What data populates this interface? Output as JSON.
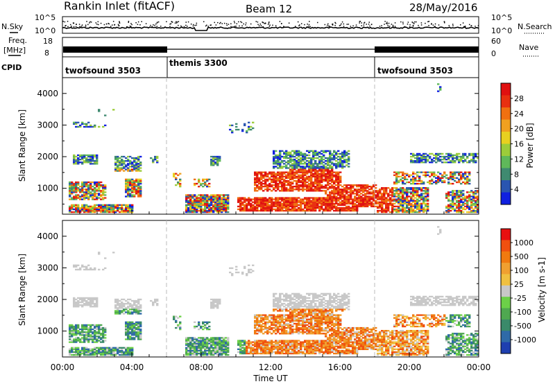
{
  "header": {
    "title": "Rankin Inlet (fitACF)",
    "beam": "Beam 12",
    "date": "28/May/2016"
  },
  "nsky_panel": {
    "left_label": "N.Sky",
    "right_label": "N.Search",
    "left_ticks": [
      "10^5",
      "10^0"
    ],
    "right_ticks": [
      "10^5",
      "10^0"
    ]
  },
  "freq_panel": {
    "left_label_1": "Freq.",
    "left_label_2": "[MHz]",
    "right_label": "Nave",
    "left_ticks": [
      "18",
      "8"
    ],
    "right_ticks": [
      "60",
      "0"
    ]
  },
  "cpid_panel": {
    "label": "CPID",
    "segments": [
      {
        "name": "twofsound 3503",
        "start_hour": 0,
        "end_hour": 6
      },
      {
        "name": "themis 3300",
        "start_hour": 6,
        "end_hour": 18
      },
      {
        "name": "twofsound 3503",
        "start_hour": 18,
        "end_hour": 24
      }
    ]
  },
  "x_axis": {
    "label": "Time UT",
    "ticks": [
      "00:00",
      "04:00",
      "08:00",
      "12:00",
      "16:00",
      "20:00",
      "00:00"
    ],
    "range_hours": [
      0,
      24
    ]
  },
  "chart_data": [
    {
      "type": "heatmap",
      "name": "power",
      "ylabel": "Slant Range [km]",
      "ylim": [
        180,
        4500
      ],
      "yticks": [
        1000,
        2000,
        3000,
        4000
      ],
      "colorbar": {
        "label": "Power [dB]",
        "range": [
          0,
          32
        ],
        "ticks": [
          4,
          8,
          12,
          16,
          20,
          24,
          28
        ],
        "colors": [
          "#1020e0",
          "#2a55b0",
          "#3f8a70",
          "#5fb85a",
          "#9ccc3a",
          "#e8d020",
          "#f0a020",
          "#f07010",
          "#e83010",
          "#e01010"
        ]
      }
    },
    {
      "type": "heatmap",
      "name": "velocity",
      "ylabel": "Slant Range [km]",
      "ylim": [
        180,
        4500
      ],
      "yticks": [
        1000,
        2000,
        3000,
        4000
      ],
      "colorbar": {
        "label": "Velocity [m s-1]",
        "ticks": [
          "1000",
          "500",
          "100",
          "25",
          "-25",
          "-100",
          "-500",
          "-1000"
        ],
        "colors": [
          "#1e3fb0",
          "#2f6aa8",
          "#3a8a6a",
          "#4fa850",
          "#6cd048",
          "#c8c8c8",
          "#f0c040",
          "#f0a030",
          "#f07a10",
          "#f05010",
          "#e81010"
        ]
      }
    }
  ],
  "colors": {
    "dashed_boundary": "#bbbbbb",
    "axis": "#000000"
  }
}
